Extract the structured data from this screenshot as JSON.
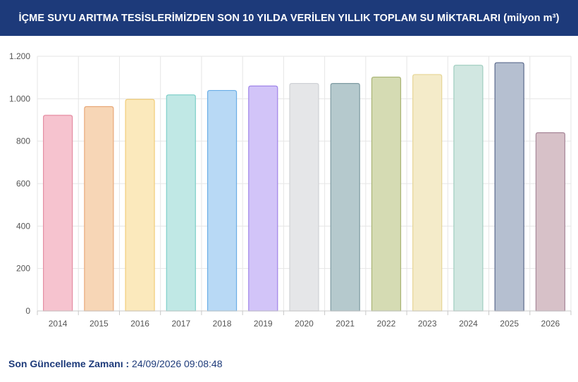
{
  "header": {
    "title": "İÇME SUYU ARITMA TESİSLERİMİZDEN SON 10 YILDA VERİLEN YILLIK TOPLAM SU MİKTARLARI (milyon m³)"
  },
  "footer": {
    "label": "Son Güncelleme Zamanı :",
    "value": "24/09/2026 09:08:48"
  },
  "chart_data": {
    "type": "bar",
    "title": "İÇME SUYU ARITMA TESİSLERİMİZDEN SON 10 YILDA VERİLEN YILLIK TOPLAM SU MİKTARLARI (milyon m³)",
    "categories": [
      "2014",
      "2015",
      "2016",
      "2017",
      "2018",
      "2019",
      "2020",
      "2021",
      "2022",
      "2023",
      "2024",
      "2025",
      "2026"
    ],
    "values": [
      922,
      963,
      997,
      1018,
      1039,
      1060,
      1072,
      1072,
      1102,
      1114,
      1158,
      1170,
      840
    ],
    "ylim": [
      0,
      1200
    ],
    "yticks": [
      0,
      200,
      400,
      600,
      800,
      1000,
      1200
    ],
    "ytick_labels": [
      "0",
      "200",
      "400",
      "600",
      "800",
      "1.000",
      "1.200"
    ],
    "grid": true,
    "legend": "none",
    "fill_colors": [
      "#f6c3cf",
      "#f7d6b6",
      "#fbe9bc",
      "#c0e8e5",
      "#b8d9f5",
      "#d2c4f8",
      "#e5e6e8",
      "#b5c9cd",
      "#d5dbb3",
      "#f4ebc9",
      "#d1e7e1",
      "#b5bfd0",
      "#d7c1c8"
    ],
    "stroke_colors": [
      "#e58ea3",
      "#e8a97a",
      "#f0cc78",
      "#7fcfc9",
      "#6aaee6",
      "#9f84e8",
      "#cfd1d5",
      "#7e9ba2",
      "#a9b474",
      "#e6d595",
      "#9fcdbf",
      "#5b6a8c",
      "#a8889a"
    ]
  }
}
